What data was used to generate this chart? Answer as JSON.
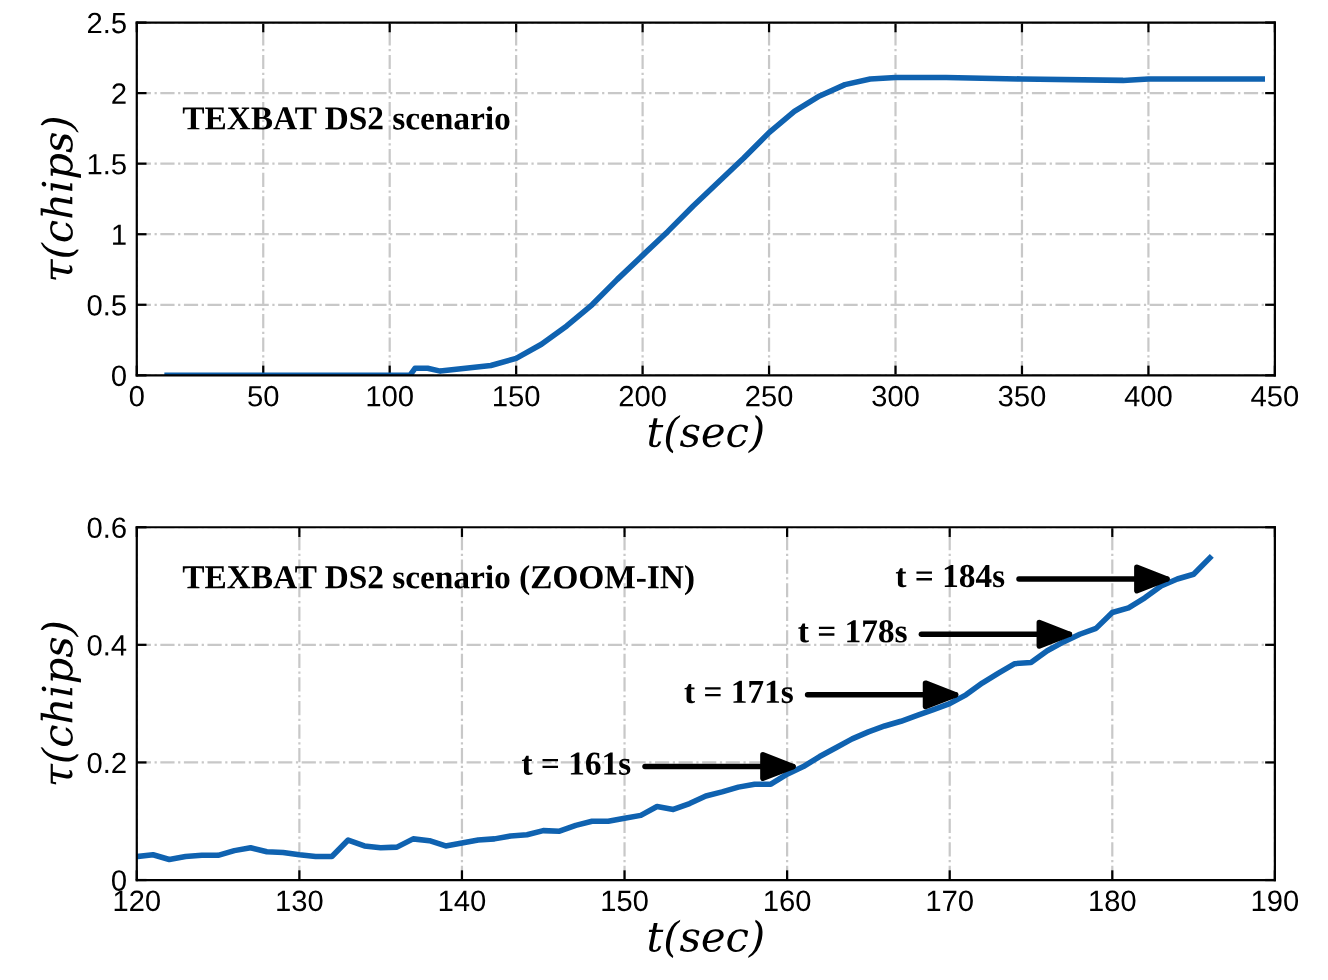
{
  "chart_data": [
    {
      "type": "line",
      "xlabel": "t(sec)",
      "ylabel": "τ(chips)",
      "annotations": [
        "TEXBAT DS2 scenario"
      ],
      "xlim": [
        0,
        450
      ],
      "ylim": [
        0,
        2.5
      ],
      "xticks": [
        0,
        50,
        100,
        150,
        200,
        250,
        300,
        350,
        400,
        450
      ],
      "yticks": [
        0,
        0.5,
        1,
        1.5,
        2,
        2.5
      ],
      "grid": true,
      "legend": false,
      "series": [
        {
          "color": "#0f62b0",
          "x": [
            12,
            50,
            100,
            108,
            110,
            115,
            120,
            130,
            140,
            150,
            160,
            170,
            180,
            190,
            200,
            210,
            220,
            230,
            240,
            250,
            260,
            270,
            280,
            290,
            300,
            320,
            350,
            390,
            400,
            445
          ],
          "values": [
            0,
            0,
            0,
            0,
            0.05,
            0.05,
            0.03,
            0.05,
            0.07,
            0.12,
            0.22,
            0.35,
            0.5,
            0.68,
            0.85,
            1.02,
            1.2,
            1.37,
            1.54,
            1.72,
            1.87,
            1.98,
            2.06,
            2.1,
            2.11,
            2.11,
            2.1,
            2.09,
            2.1,
            2.1
          ]
        }
      ]
    },
    {
      "type": "line",
      "xlabel": "t(sec)",
      "ylabel": "τ(chips)",
      "annotations": [
        "TEXBAT DS2 scenario (ZOOM-IN)",
        {
          "text": "t = 161s",
          "x": 161,
          "y": 0.193
        },
        {
          "text": "t = 171s",
          "x": 171,
          "y": 0.315
        },
        {
          "text": "t = 178s",
          "x": 178,
          "y": 0.418
        },
        {
          "text": "t = 184s",
          "x": 184,
          "y": 0.512
        }
      ],
      "xlim": [
        120,
        190
      ],
      "ylim": [
        0,
        0.6
      ],
      "xticks": [
        120,
        130,
        140,
        150,
        160,
        170,
        180,
        190
      ],
      "yticks": [
        0,
        0.2,
        0.4,
        0.6
      ],
      "grid": true,
      "legend": false,
      "series": [
        {
          "color": "#0f62b0",
          "x": [
            120,
            121,
            122,
            123,
            124,
            125,
            126,
            127,
            128,
            129,
            130,
            131,
            132,
            133,
            134,
            135,
            136,
            137,
            138,
            139,
            140,
            141,
            142,
            143,
            144,
            145,
            146,
            147,
            148,
            149,
            150,
            151,
            152,
            153,
            154,
            155,
            156,
            157,
            158,
            159,
            160,
            161,
            162,
            163,
            164,
            165,
            166,
            167,
            168,
            169,
            170,
            171,
            172,
            173,
            174,
            175,
            176,
            177,
            178,
            179,
            180,
            181,
            182,
            183,
            184,
            185,
            186
          ],
          "values": [
            0.04,
            0.043,
            0.035,
            0.04,
            0.042,
            0.042,
            0.05,
            0.055,
            0.048,
            0.047,
            0.043,
            0.04,
            0.04,
            0.068,
            0.058,
            0.055,
            0.056,
            0.07,
            0.067,
            0.058,
            0.063,
            0.068,
            0.07,
            0.075,
            0.077,
            0.084,
            0.083,
            0.093,
            0.1,
            0.1,
            0.105,
            0.11,
            0.125,
            0.12,
            0.13,
            0.143,
            0.15,
            0.158,
            0.163,
            0.163,
            0.18,
            0.193,
            0.21,
            0.225,
            0.24,
            0.252,
            0.262,
            0.27,
            0.28,
            0.29,
            0.3,
            0.315,
            0.335,
            0.352,
            0.368,
            0.37,
            0.39,
            0.405,
            0.418,
            0.428,
            0.455,
            0.463,
            0.48,
            0.5,
            0.512,
            0.52,
            0.548
          ]
        }
      ]
    }
  ]
}
